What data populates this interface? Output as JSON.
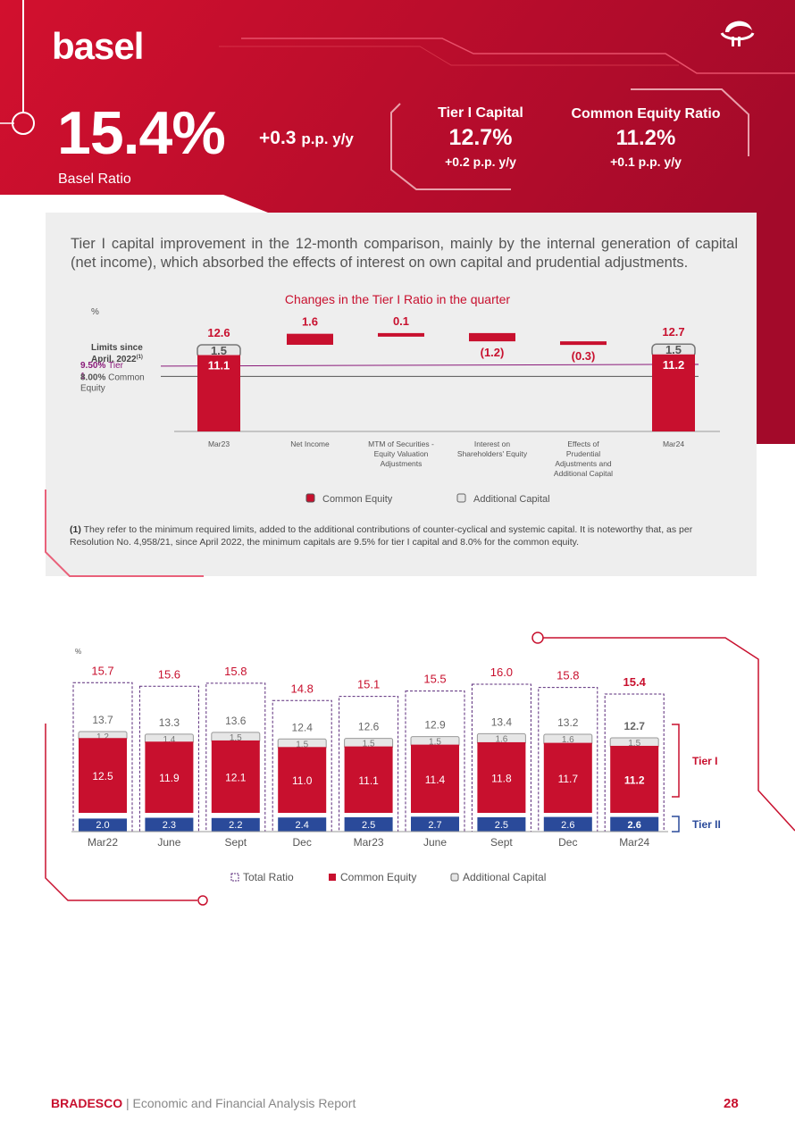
{
  "header": {
    "title": "basel",
    "ratio": "15.4%",
    "ratio_delta": "+0.3",
    "ratio_delta_unit": "p.p. y/y",
    "ratio_label": "Basel Ratio",
    "tier1": {
      "title": "Tier I Capital",
      "value": "12.7%",
      "delta": "+0.2 p.p. y/y"
    },
    "cet1": {
      "title": "Common Equity Ratio",
      "value": "11.2%",
      "delta": "+0.1 p.p. y/y"
    }
  },
  "panel": {
    "text": "Tier I capital improvement in the 12-month comparison, mainly by the internal generation of capital (net income), which absorbed the effects of interest on own capital and prudential adjustments.",
    "note_marker": "(1)",
    "note": "They refer to the minimum required limits, added to the additional contributions of counter-cyclical and systemic capital. It is noteworthy that, as per Resolution No. 4,958/21, since April 2022, the minimum capitals are 9.5% for tier I capital and 8.0% for the common equity."
  },
  "chart_data": [
    {
      "type": "bar",
      "title": "Changes in the Tier I Ratio in the quarter",
      "unit": "%",
      "limits_label": "Limits since April, 2022",
      "limits_sup": "(1)",
      "limits": [
        {
          "value": 9.5,
          "value_label": "9.50%",
          "label": "Tier 1"
        },
        {
          "value": 8.0,
          "value_label": "8.00%",
          "label": "Common Equity"
        }
      ],
      "categories": [
        "Mar23",
        "Net Income",
        "MTM of Securities - Equity Valuation Adjustments",
        "Interest on Shareholders' Equity",
        "Effects of Prudential Adjustments and Additional Capital",
        "Mar24"
      ],
      "endpoints": [
        {
          "category": "Mar23",
          "total": "12.6",
          "common_equity": 11.1,
          "additional_capital": 1.5
        },
        {
          "category": "Mar24",
          "total": "12.7",
          "common_equity": 11.2,
          "additional_capital": 1.5
        }
      ],
      "changes": [
        {
          "category": "Net Income",
          "value": 1.6,
          "label": "1.6"
        },
        {
          "category": "MTM of Securities - Equity Valuation Adjustments",
          "value": 0.1,
          "label": "0.1"
        },
        {
          "category": "Interest on Shareholders' Equity",
          "value": -1.2,
          "label": "(1.2)"
        },
        {
          "category": "Effects of Prudential Adjustments and Additional Capital",
          "value": -0.3,
          "label": "(0.3)"
        }
      ],
      "legend": [
        "Common Equity",
        "Additional Capital"
      ]
    },
    {
      "type": "bar",
      "unit": "%",
      "categories": [
        "Mar22",
        "June",
        "Sept",
        "Dec",
        "Mar23",
        "June",
        "Sept",
        "Dec",
        "Mar24"
      ],
      "series": [
        {
          "name": "Total Ratio",
          "values": [
            15.7,
            15.6,
            15.8,
            14.8,
            15.1,
            15.5,
            16.0,
            15.8,
            15.4
          ],
          "labels": [
            "15.7",
            "15.6",
            "15.8",
            "14.8",
            "15.1",
            "15.5",
            "16.0",
            "15.8",
            "15.4"
          ]
        },
        {
          "name": "Tier I",
          "values": [
            13.7,
            13.3,
            13.6,
            12.4,
            12.6,
            12.9,
            13.4,
            13.2,
            12.7
          ],
          "labels": [
            "13.7",
            "13.3",
            "13.6",
            "12.4",
            "12.6",
            "12.9",
            "13.4",
            "13.2",
            "12.7"
          ]
        },
        {
          "name": "Common Equity",
          "values": [
            12.5,
            11.9,
            12.1,
            11.0,
            11.1,
            11.4,
            11.8,
            11.7,
            11.2
          ],
          "labels": [
            "12.5",
            "11.9",
            "12.1",
            "11.0",
            "11.1",
            "11.4",
            "11.8",
            "11.7",
            "11.2"
          ]
        },
        {
          "name": "Additional Capital",
          "values": [
            1.2,
            1.4,
            1.5,
            1.5,
            1.5,
            1.5,
            1.6,
            1.6,
            1.5
          ],
          "labels": [
            "1.2",
            "1.4",
            "1.5",
            "1.5",
            "1.5",
            "1.5",
            "1.6",
            "1.6",
            "1.5"
          ]
        },
        {
          "name": "Tier II",
          "values": [
            2.0,
            2.3,
            2.2,
            2.4,
            2.5,
            2.7,
            2.5,
            2.6,
            2.6
          ],
          "labels": [
            "2.0",
            "2.3",
            "2.2",
            "2.4",
            "2.5",
            "2.7",
            "2.5",
            "2.6",
            "2.6"
          ]
        }
      ],
      "bracket_labels": [
        "Tier I",
        "Tier II"
      ],
      "legend": [
        "Total Ratio",
        "Common Equity",
        "Additional Capital"
      ]
    }
  ],
  "footer": {
    "brand": "BRADESCO",
    "separator": " | ",
    "report": "Economic and Financial Analysis Report",
    "page": "28"
  },
  "colors": {
    "red": "#c8102e",
    "dark_red": "#a00a25",
    "blue": "#2a4a9a",
    "gray": "#e6e6e6",
    "purple": "#8a1a7a"
  }
}
